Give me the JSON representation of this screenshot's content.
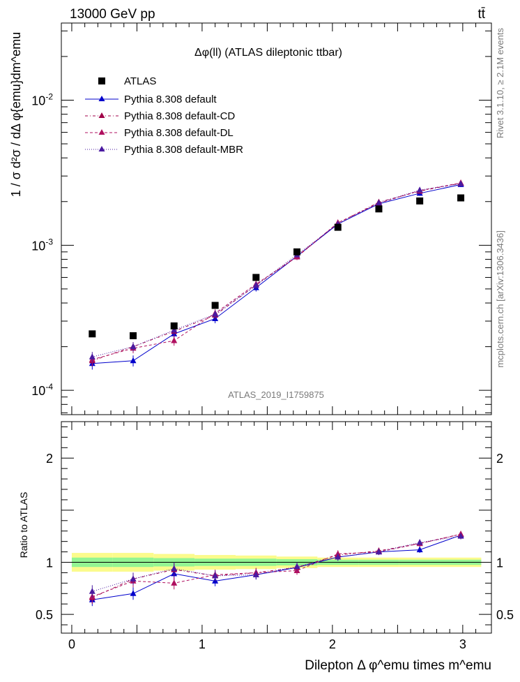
{
  "header": {
    "left": "13000 GeV pp",
    "right": "tt̄"
  },
  "plot": {
    "title": "Δφ(ll) (ATLAS dileptonic ttbar)",
    "watermark": "ATLAS_2019_I1759875",
    "side_text_top": "Rivet 3.1.10, ≥ 2.1M events",
    "side_text_bottom": "mcplots.cern.ch [arXiv:1306.3436]"
  },
  "axes": {
    "ylabel_top": "1 / σ d²σ / dΔ φ{emu}dm^emu",
    "ylabel_bottom": "Ratio to ATLAS",
    "xlabel": "Dilepton Δ φ^emu times m^emu"
  },
  "legend": [
    {
      "label": "ATLAS"
    },
    {
      "label": "Pythia 8.308 default"
    },
    {
      "label": "Pythia 8.308 default-CD"
    },
    {
      "label": "Pythia 8.308 default-DL"
    },
    {
      "label": "Pythia 8.308 default-MBR"
    }
  ],
  "colors": {
    "atlas": "#000000",
    "default": "#0000cc",
    "cd": "#a00048",
    "dl": "#b01060",
    "mbr": "#4a1aa0",
    "band_inner": "#93f593",
    "band_outer": "#fbfb8c"
  },
  "chart_data": {
    "type": "scatter",
    "x": [
      0.157,
      0.471,
      0.785,
      1.1,
      1.414,
      1.728,
      2.042,
      2.356,
      2.67,
      2.985
    ],
    "x_edges": [
      0.0,
      0.314,
      0.628,
      0.942,
      1.257,
      1.571,
      1.885,
      2.199,
      2.513,
      2.827,
      3.142
    ],
    "xlim": [
      -0.08,
      3.22
    ],
    "x_ticks": [
      0,
      0.5,
      1,
      1.5,
      2,
      2.5,
      3
    ],
    "x_tick_labels": [
      "0",
      "1",
      "2",
      "3"
    ],
    "top_panel": {
      "yscale": "log",
      "ylim": [
        6.8e-05,
        0.034
      ],
      "y_tick_labels": [
        "10^-4",
        "10^-3",
        "10^-2"
      ],
      "series": [
        {
          "name": "ATLAS",
          "marker": "square",
          "values": [
            0.000245,
            0.000238,
            0.000278,
            0.000385,
            0.0006,
            0.0009,
            0.00133,
            0.00178,
            0.00202,
            0.00212
          ]
        },
        {
          "name": "Pythia 8.308 default",
          "marker": "triangle",
          "line": "solid",
          "values": [
            0.000153,
            0.00016,
            0.000245,
            0.000312,
            0.00051,
            0.00084,
            0.0014,
            0.00193,
            0.00228,
            0.00262
          ],
          "err": [
            1.4e-05,
            1.4e-05,
            1.8e-05,
            2.2e-05,
            3e-05,
            4e-05,
            6e-05,
            8e-05,
            9e-05,
            0.0001
          ]
        },
        {
          "name": "Pythia 8.308 default-CD",
          "marker": "triangle",
          "line": "dashdot",
          "values": [
            0.00016,
            0.0002,
            0.000255,
            0.00033,
            0.00053,
            0.00084,
            0.00142,
            0.00198,
            0.00236,
            0.00268
          ],
          "err": [
            1.4e-05,
            1.5e-05,
            1.8e-05,
            2.2e-05,
            3e-05,
            4e-05,
            6e-05,
            8e-05,
            9e-05,
            0.0001
          ]
        },
        {
          "name": "Pythia 8.308 default-DL",
          "marker": "triangle",
          "line": "dashed",
          "values": [
            0.000163,
            0.000195,
            0.00022,
            0.00034,
            0.00054,
            0.00083,
            0.00143,
            0.00195,
            0.00238,
            0.00269
          ],
          "err": [
            1.4e-05,
            1.5e-05,
            1.7e-05,
            2.2e-05,
            3e-05,
            4e-05,
            6e-05,
            8e-05,
            9e-05,
            0.0001
          ]
        },
        {
          "name": "Pythia 8.308 default-MBR",
          "marker": "triangle",
          "line": "dotted",
          "values": [
            0.00017,
            0.0002,
            0.00026,
            0.000335,
            0.00053,
            0.00086,
            0.0014,
            0.00196,
            0.0024,
            0.00265
          ],
          "err": [
            1.4e-05,
            1.5e-05,
            1.8e-05,
            2.2e-05,
            3e-05,
            4e-05,
            6e-05,
            8e-05,
            9e-05,
            0.0001
          ]
        }
      ]
    },
    "bottom_panel": {
      "ylim": [
        0.32,
        2.35
      ],
      "y_ticks": [
        0.5,
        1,
        1.5,
        2
      ],
      "y_tick_labels": [
        "0.5",
        "1",
        "2"
      ],
      "band_inner": [
        0.045,
        0.045,
        0.04,
        0.035,
        0.035,
        0.03,
        0.025,
        0.025,
        0.025,
        0.025
      ],
      "band_outer": [
        0.09,
        0.09,
        0.08,
        0.07,
        0.065,
        0.055,
        0.045,
        0.045,
        0.045,
        0.045
      ],
      "series": [
        {
          "name": "Pythia 8.308 default",
          "values": [
            0.64,
            0.7,
            0.89,
            0.82,
            0.88,
            0.95,
            1.05,
            1.1,
            1.12,
            1.26
          ],
          "err": [
            0.06,
            0.06,
            0.06,
            0.05,
            0.045,
            0.04,
            0.035,
            0.03,
            0.03,
            0.03
          ]
        },
        {
          "name": "Pythia 8.308 default-CD",
          "values": [
            0.66,
            0.84,
            0.93,
            0.87,
            0.9,
            0.95,
            1.07,
            1.11,
            1.18,
            1.27
          ],
          "err": [
            0.06,
            0.06,
            0.06,
            0.05,
            0.045,
            0.04,
            0.035,
            0.03,
            0.03,
            0.03
          ]
        },
        {
          "name": "Pythia 8.308 default-DL",
          "values": [
            0.67,
            0.82,
            0.8,
            0.88,
            0.9,
            0.92,
            1.08,
            1.1,
            1.18,
            1.27
          ],
          "err": [
            0.06,
            0.06,
            0.06,
            0.05,
            0.045,
            0.04,
            0.035,
            0.03,
            0.03,
            0.03
          ]
        },
        {
          "name": "Pythia 8.308 default-MBR",
          "values": [
            0.72,
            0.84,
            0.94,
            0.87,
            0.88,
            0.96,
            1.05,
            1.1,
            1.19,
            1.25
          ],
          "err": [
            0.06,
            0.06,
            0.06,
            0.05,
            0.045,
            0.04,
            0.035,
            0.03,
            0.03,
            0.03
          ]
        }
      ]
    }
  }
}
